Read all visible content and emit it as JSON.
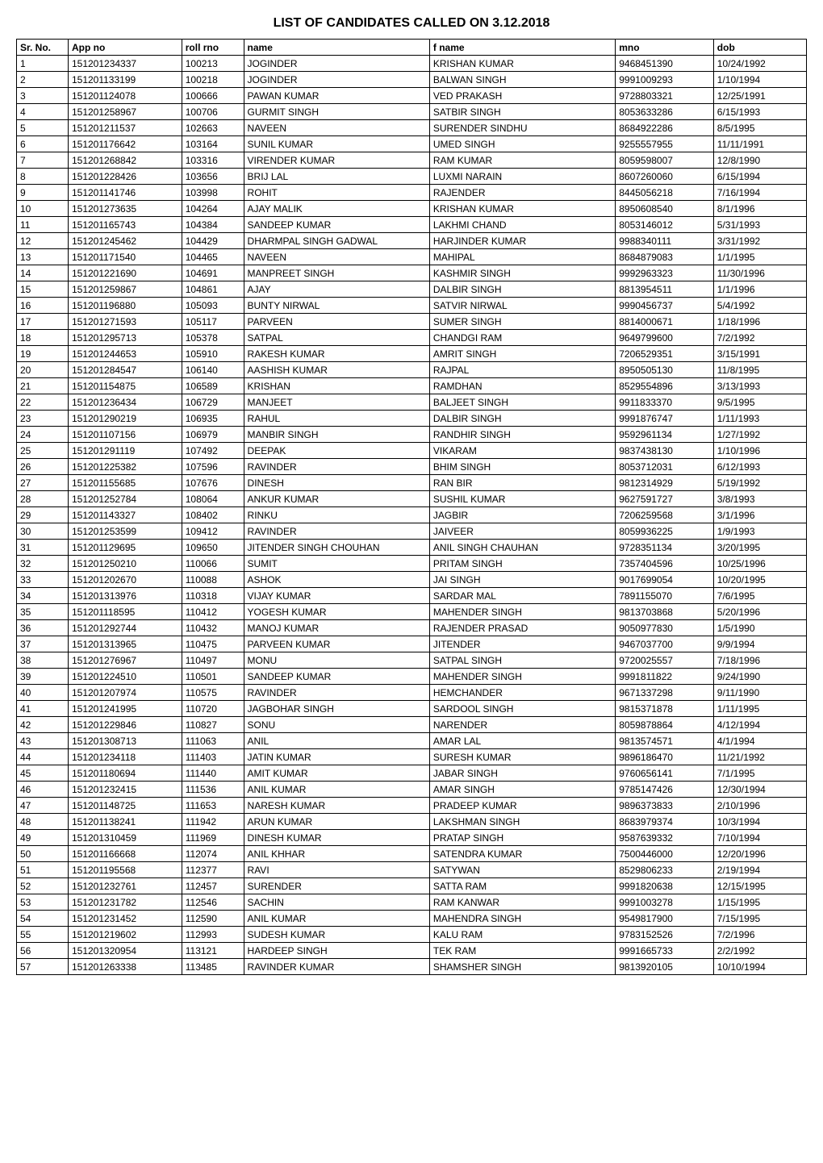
{
  "title": "LIST OF CANDIDATES CALLED ON 3.12.2018",
  "columns": [
    "Sr. No.",
    "App no",
    "roll rno",
    "name",
    "f name",
    "mno",
    "dob"
  ],
  "rows": [
    [
      "1",
      "151201234337",
      "100213",
      "JOGINDER",
      "KRISHAN  KUMAR",
      "9468451390",
      "10/24/1992"
    ],
    [
      "2",
      "151201133199",
      "100218",
      "JOGINDER",
      "BALWAN  SINGH",
      "9991009293",
      "1/10/1994"
    ],
    [
      "3",
      "151201124078",
      "100666",
      "PAWAN KUMAR",
      "VED  PRAKASH",
      "9728803321",
      "12/25/1991"
    ],
    [
      "4",
      "151201258967",
      "100706",
      "GURMIT SINGH",
      "SATBIR  SINGH",
      "8053633286",
      "6/15/1993"
    ],
    [
      "5",
      "151201211537",
      "102663",
      "NAVEEN",
      "SURENDER  SINDHU",
      "8684922286",
      "8/5/1995"
    ],
    [
      "6",
      "151201176642",
      "103164",
      "SUNIL KUMAR",
      "UMED  SINGH",
      "9255557955",
      "11/11/1991"
    ],
    [
      "7",
      "151201268842",
      "103316",
      "VIRENDER KUMAR",
      "RAM  KUMAR",
      "8059598007",
      "12/8/1990"
    ],
    [
      "8",
      "151201228426",
      "103656",
      "BRIJ LAL",
      "LUXMI  NARAIN",
      "8607260060",
      "6/15/1994"
    ],
    [
      "9",
      "151201141746",
      "103998",
      "ROHIT",
      "RAJENDER",
      "8445056218",
      "7/16/1994"
    ],
    [
      "10",
      "151201273635",
      "104264",
      "AJAY MALIK",
      "KRISHAN KUMAR",
      "8950608540",
      "8/1/1996"
    ],
    [
      "11",
      "151201165743",
      "104384",
      "SANDEEP KUMAR",
      "LAKHMI  CHAND",
      "8053146012",
      "5/31/1993"
    ],
    [
      "12",
      "151201245462",
      "104429",
      "DHARMPAL SINGH GADWAL",
      "HARJINDER  KUMAR",
      "9988340111",
      "3/31/1992"
    ],
    [
      "13",
      "151201171540",
      "104465",
      "NAVEEN",
      "MAHIPAL",
      "8684879083",
      "1/1/1995"
    ],
    [
      "14",
      "151201221690",
      "104691",
      "MANPREET SINGH",
      "KASHMIR SINGH",
      "9992963323",
      "11/30/1996"
    ],
    [
      "15",
      "151201259867",
      "104861",
      "AJAY",
      "DALBIR  SINGH",
      "8813954511",
      "1/1/1996"
    ],
    [
      "16",
      "151201196880",
      "105093",
      "BUNTY NIRWAL",
      "SATVIR  NIRWAL",
      "9990456737",
      "5/4/1992"
    ],
    [
      "17",
      "151201271593",
      "105117",
      "PARVEEN",
      "SUMER  SINGH",
      "8814000671",
      "1/18/1996"
    ],
    [
      "18",
      "151201295713",
      "105378",
      "SATPAL",
      "CHANDGI RAM",
      "9649799600",
      "7/2/1992"
    ],
    [
      "19",
      "151201244653",
      "105910",
      "RAKESH KUMAR",
      "AMRIT SINGH",
      "7206529351",
      "3/15/1991"
    ],
    [
      "20",
      "151201284547",
      "106140",
      "AASHISH KUMAR",
      "RAJPAL",
      "8950505130",
      "11/8/1995"
    ],
    [
      "21",
      "151201154875",
      "106589",
      "KRISHAN",
      "RAMDHAN",
      "8529554896",
      "3/13/1993"
    ],
    [
      "22",
      "151201236434",
      "106729",
      "MANJEET",
      "BALJEET  SINGH",
      "9911833370",
      "9/5/1995"
    ],
    [
      "23",
      "151201290219",
      "106935",
      "RAHUL",
      "DALBIR  SINGH",
      "9991876747",
      "1/11/1993"
    ],
    [
      "24",
      "151201107156",
      "106979",
      "MANBIR SINGH",
      "RANDHIR  SINGH",
      "9592961134",
      "1/27/1992"
    ],
    [
      "25",
      "151201291119",
      "107492",
      "DEEPAK",
      "VIKARAM",
      "9837438130",
      "1/10/1996"
    ],
    [
      "26",
      "151201225382",
      "107596",
      "RAVINDER",
      "BHIM  SINGH",
      "8053712031",
      "6/12/1993"
    ],
    [
      "27",
      "151201155685",
      "107676",
      "DINESH",
      "RAN  BIR",
      "9812314929",
      "5/19/1992"
    ],
    [
      "28",
      "151201252784",
      "108064",
      "ANKUR KUMAR",
      "SUSHIL  KUMAR",
      "9627591727",
      "3/8/1993"
    ],
    [
      "29",
      "151201143327",
      "108402",
      "RINKU",
      "JAGBIR",
      "7206259568",
      "3/1/1996"
    ],
    [
      "30",
      "151201253599",
      "109412",
      "RAVINDER",
      "JAIVEER",
      "8059936225",
      "1/9/1993"
    ],
    [
      "31",
      "151201129695",
      "109650",
      "JITENDER SINGH CHOUHAN",
      "ANIL SINGH CHAUHAN",
      "9728351134",
      "3/20/1995"
    ],
    [
      "32",
      "151201250210",
      "110066",
      "SUMIT",
      "PRITAM  SINGH",
      "7357404596",
      "10/25/1996"
    ],
    [
      "33",
      "151201202670",
      "110088",
      "ASHOK",
      "JAI  SINGH",
      "9017699054",
      "10/20/1995"
    ],
    [
      "34",
      "151201313976",
      "110318",
      "VIJAY KUMAR",
      "SARDAR MAL",
      "7891155070",
      "7/6/1995"
    ],
    [
      "35",
      "151201118595",
      "110412",
      "YOGESH KUMAR",
      "MAHENDER SINGH",
      "9813703868",
      "5/20/1996"
    ],
    [
      "36",
      "151201292744",
      "110432",
      "MANOJ KUMAR",
      "RAJENDER  PRASAD",
      "9050977830",
      "1/5/1990"
    ],
    [
      "37",
      "151201313965",
      "110475",
      "PARVEEN KUMAR",
      "JITENDER",
      "9467037700",
      "9/9/1994"
    ],
    [
      "38",
      "151201276967",
      "110497",
      "MONU",
      "SATPAL  SINGH",
      "9720025557",
      "7/18/1996"
    ],
    [
      "39",
      "151201224510",
      "110501",
      "SANDEEP KUMAR",
      "MAHENDER  SINGH",
      "9991811822",
      "9/24/1990"
    ],
    [
      "40",
      "151201207974",
      "110575",
      "RAVINDER",
      "HEMCHANDER",
      "9671337298",
      "9/11/1990"
    ],
    [
      "41",
      "151201241995",
      "110720",
      "JAGBOHAR SINGH",
      "SARDOOL  SINGH",
      "9815371878",
      "1/11/1995"
    ],
    [
      "42",
      "151201229846",
      "110827",
      "SONU",
      "NARENDER",
      "8059878864",
      "4/12/1994"
    ],
    [
      "43",
      "151201308713",
      "111063",
      "ANIL",
      "AMAR  LAL",
      "9813574571",
      "4/1/1994"
    ],
    [
      "44",
      "151201234118",
      "111403",
      "JATIN KUMAR",
      "SURESH  KUMAR",
      "9896186470",
      "11/21/1992"
    ],
    [
      "45",
      "151201180694",
      "111440",
      "AMIT KUMAR",
      "JABAR  SINGH",
      "9760656141",
      "7/1/1995"
    ],
    [
      "46",
      "151201232415",
      "111536",
      "ANIL KUMAR",
      "AMAR  SINGH",
      "9785147426",
      "12/30/1994"
    ],
    [
      "47",
      "151201148725",
      "111653",
      "NARESH KUMAR",
      "PRADEEP  KUMAR",
      "9896373833",
      "2/10/1996"
    ],
    [
      "48",
      "151201138241",
      "111942",
      "ARUN KUMAR",
      "LAKSHMAN  SINGH",
      "8683979374",
      "10/3/1994"
    ],
    [
      "49",
      "151201310459",
      "111969",
      "DINESH KUMAR",
      "PRATAP  SINGH",
      "9587639332",
      "7/10/1994"
    ],
    [
      "50",
      "151201166668",
      "112074",
      "ANIL KHHAR",
      "SATENDRA  KUMAR",
      "7500446000",
      "12/20/1996"
    ],
    [
      "51",
      "151201195568",
      "112377",
      "RAVI",
      "SATYWAN",
      "8529806233",
      "2/19/1994"
    ],
    [
      "52",
      "151201232761",
      "112457",
      "SURENDER",
      "SATTA RAM",
      "9991820638",
      "12/15/1995"
    ],
    [
      "53",
      "151201231782",
      "112546",
      "SACHIN",
      "RAM KANWAR",
      "9991003278",
      "1/15/1995"
    ],
    [
      "54",
      "151201231452",
      "112590",
      "ANIL KUMAR",
      "MAHENDRA  SINGH",
      "9549817900",
      "7/15/1995"
    ],
    [
      "55",
      "151201219602",
      "112993",
      "SUDESH KUMAR",
      "KALU  RAM",
      "9783152526",
      "7/2/1996"
    ],
    [
      "56",
      "151201320954",
      "113121",
      "HARDEEP SINGH",
      "TEK  RAM",
      "9991665733",
      "2/2/1992"
    ],
    [
      "57",
      "151201263338",
      "113485",
      "RAVINDER KUMAR",
      "SHAMSHER  SINGH",
      "9813920105",
      "10/10/1994"
    ]
  ]
}
